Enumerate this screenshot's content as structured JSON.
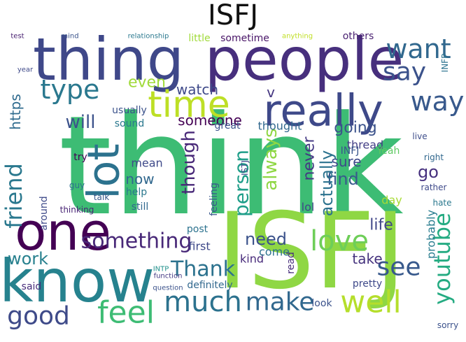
{
  "title": "ISFJ",
  "words": [
    "think",
    "ISFJ",
    "thing",
    "people",
    "know",
    "one",
    "really",
    "time",
    "lot",
    "want",
    "say",
    "way",
    "type",
    "feel",
    "good",
    "much",
    "make",
    "well",
    "love",
    "see",
    "youtube",
    "something",
    "Thank",
    "friend",
    "person",
    "always",
    "though",
    "will",
    "watch",
    "even",
    "someone",
    "going",
    "thread",
    "find",
    "sure",
    "actually",
    "never",
    "need",
    "go",
    "life",
    "work",
    "now",
    "https",
    "usually",
    "v",
    "sound",
    "great",
    "thought",
    "INFJ",
    "Yeah",
    "try",
    "mean",
    "help",
    "still",
    "kind",
    "post",
    "first",
    "come",
    "definitely",
    "read",
    "take",
    "probably",
    "lol",
    "day",
    "feeling",
    "around",
    "said",
    "look",
    "pretty",
    "others",
    "little",
    "sometime",
    "relationship",
    "test",
    "mind",
    "anything",
    "year",
    "guy",
    "talk",
    "thinking",
    "question",
    "function",
    "hate",
    "rather",
    "right",
    "live",
    "INTP",
    "ISTJ",
    "sorry",
    "INFP"
  ]
}
